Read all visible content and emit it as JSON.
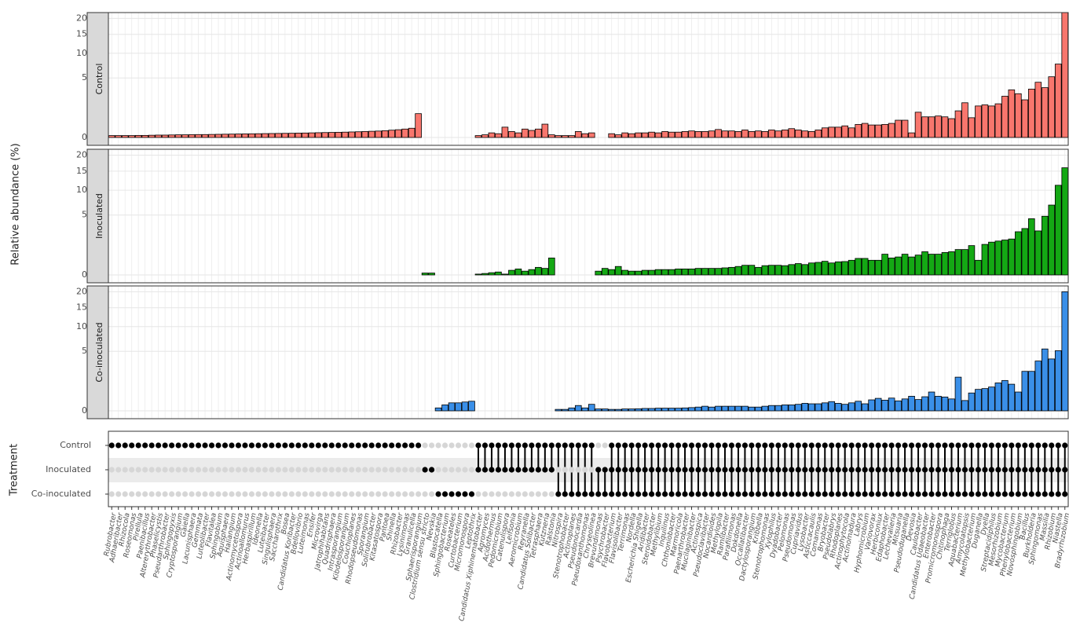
{
  "chart_data": {
    "type": "upset",
    "ylabel": "Relative abundance (%)",
    "matrix_ylabel": "Treatment",
    "scale": "sqrt",
    "ylim": [
      0,
      22
    ],
    "yticks": [
      0,
      5,
      10,
      15,
      20
    ],
    "grid": true,
    "categories": [
      "Rubrobacter",
      "Adhaeribacter",
      "Rhizocola",
      "Roseomonas",
      "Pirellula",
      "Paenibacillus",
      "Altererythrobacter",
      "Phaselicystis",
      "Pseudarthrobacter",
      "Sphingopyxis",
      "Cryptosporangium",
      "Gaiella",
      "Lacunisphaera",
      "Gemmata",
      "Luteolibacter",
      "Flavitalea",
      "Sphingobium",
      "Aquisphaera",
      "Haliangium",
      "Actinomycetospora",
      "Actinoallomurus",
      "Herbaspirillum",
      "Ideonella",
      "Luteibacter",
      "Singulisphaera",
      "Saccharothrix",
      "Bosea",
      "Candidatus Koribacter",
      "Bdellovibrio",
      "Luteimonas",
      "Ensifer",
      "Microvirga",
      "Jatrophihabitans",
      "Quadrisphaera",
      "Intrasporangium",
      "Kibdelosporangium",
      "Couchioplanes",
      "Rhodopseudomonas",
      "Sporangium",
      "Solirubrobacter",
      "Kitasatospora",
      "Pantoea",
      "Shinella",
      "Rhizobacter",
      "Lysinimonas",
      "Granulicella",
      "Sphaerisporangium",
      "Clostridium sensu stricto",
      "Nevskia",
      "Blastocatella",
      "Sphingobacterium",
      "Roseateles",
      "Curtobacterium",
      "Micromonospora",
      "Leptothrix",
      "Candidatus Xiphinematobacter",
      "Agromyces",
      "Acidothermus",
      "Pedomicrobium",
      "Catenulispora",
      "Leifsonia",
      "Aeromicrobium",
      "Reyranella",
      "Candidatus Solibacter",
      "Tetrasphaera",
      "Kutzneria",
      "Ralstonia",
      "Nitrospira",
      "Stenotrophobacter",
      "Actinoplanes",
      "Pseudonocardia",
      "Pseudoxanthomonas",
      "Chryseolinea",
      "Brevundimonas",
      "Psychrobacter",
      "Flavobacterium",
      "Flavisolibacter",
      "Terrimonas",
      "Nordella",
      "Escherichia Shigella",
      "Aridibacter",
      "Steroidobacter",
      "Methylibium",
      "Inquilinus",
      "Chthoniobacter",
      "Marmoricola",
      "Paenarthrobacter",
      "Mucilaginibacter",
      "Actinospica",
      "Pseudoclavibacter",
      "Nocardioides",
      "Methylopila",
      "Ramlibacter",
      "Parafilimonas",
      "Dokdonella",
      "Occallatibacter",
      "Dactylosporangium",
      "Kribbella",
      "Stenotrophomonas",
      "Xylophilus",
      "Dyadobacter",
      "Pelomonas",
      "Pseudomonas",
      "Cupriavidus",
      "Lysobacter",
      "Asticcacaulis",
      "Comamonas",
      "Bryobacter",
      "Pseudolabrys",
      "Rhodoplanes",
      "Actinophytocola",
      "Actinomadura",
      "Labrys",
      "Hyphomicrobium",
      "Variovorax",
      "Herbiconiux",
      "Edaphobacter",
      "Lechevalieria",
      "Mitsuaria",
      "Pseudoduganella",
      "Devosia",
      "Caulobacter",
      "Candidatus Udaeobacter",
      "Enterobacter",
      "Promicromonospora",
      "Chitinophaga",
      "Terriglobus",
      "Aquabacterium",
      "Amycolatopsis",
      "Methylobacterium",
      "Duganella",
      "Dyella",
      "Streptacidiphilus",
      "Mesorhizobium",
      "Mycobacterium",
      "Phenylobacterium",
      "Novosphingobium",
      "Bacillus",
      "Burkholderia",
      "Sphingomonas",
      "Massilia",
      "Rhizobium",
      "Niastella",
      "Bradyrhizobium"
    ],
    "series": [
      {
        "name": "Control",
        "color": "#f8766d",
        "values": [
          0.005,
          0.005,
          0.005,
          0.005,
          0.006,
          0.006,
          0.007,
          0.008,
          0.008,
          0.009,
          0.01,
          0.01,
          0.011,
          0.012,
          0.012,
          0.013,
          0.014,
          0.015,
          0.016,
          0.017,
          0.018,
          0.019,
          0.02,
          0.021,
          0.022,
          0.023,
          0.024,
          0.025,
          0.027,
          0.028,
          0.03,
          0.032,
          0.034,
          0.036,
          0.038,
          0.04,
          0.043,
          0.046,
          0.05,
          0.054,
          0.058,
          0.065,
          0.075,
          0.085,
          0.1,
          0.12,
          0.8,
          null,
          null,
          null,
          null,
          null,
          null,
          null,
          null,
          0.005,
          0.01,
          0.03,
          0.02,
          0.15,
          0.05,
          0.03,
          0.1,
          0.07,
          0.1,
          0.25,
          0.01,
          0.005,
          0.005,
          0.005,
          0.05,
          0.02,
          0.03,
          null,
          null,
          0.02,
          0.01,
          0.03,
          0.02,
          0.03,
          0.03,
          0.04,
          0.03,
          0.05,
          0.04,
          0.04,
          0.05,
          0.06,
          0.05,
          0.05,
          0.06,
          0.09,
          0.06,
          0.06,
          0.05,
          0.08,
          0.05,
          0.06,
          0.05,
          0.08,
          0.06,
          0.08,
          0.11,
          0.08,
          0.06,
          0.05,
          0.08,
          0.13,
          0.15,
          0.15,
          0.19,
          0.13,
          0.24,
          0.28,
          0.22,
          0.22,
          0.24,
          0.28,
          0.42,
          0.42,
          0.03,
          0.9,
          0.6,
          0.6,
          0.65,
          0.6,
          0.5,
          1.0,
          1.7,
          0.55,
          1.4,
          1.5,
          1.4,
          1.6,
          2.4,
          3.2,
          2.7,
          2.0,
          3.3,
          4.3,
          3.5,
          5.2,
          7.6,
          24
        ]
      },
      {
        "name": "Inoculated",
        "color": "#14a814",
        "values": [
          null,
          null,
          null,
          null,
          null,
          null,
          null,
          null,
          null,
          null,
          null,
          null,
          null,
          null,
          null,
          null,
          null,
          null,
          null,
          null,
          null,
          null,
          null,
          null,
          null,
          null,
          null,
          null,
          null,
          null,
          null,
          null,
          null,
          null,
          null,
          null,
          null,
          null,
          null,
          null,
          null,
          null,
          null,
          null,
          null,
          null,
          null,
          0.005,
          0.005,
          null,
          null,
          null,
          null,
          null,
          null,
          0.001,
          0.003,
          0.007,
          0.012,
          0.001,
          0.03,
          0.05,
          0.02,
          0.04,
          0.08,
          0.06,
          0.4,
          null,
          null,
          null,
          null,
          null,
          null,
          0.02,
          0.06,
          0.04,
          0.1,
          0.03,
          0.02,
          0.02,
          0.03,
          0.03,
          0.04,
          0.04,
          0.04,
          0.05,
          0.05,
          0.05,
          0.06,
          0.06,
          0.06,
          0.06,
          0.07,
          0.08,
          0.1,
          0.13,
          0.13,
          0.08,
          0.12,
          0.13,
          0.13,
          0.12,
          0.15,
          0.18,
          0.15,
          0.2,
          0.22,
          0.26,
          0.2,
          0.24,
          0.25,
          0.3,
          0.38,
          0.38,
          0.3,
          0.3,
          0.6,
          0.4,
          0.45,
          0.6,
          0.45,
          0.55,
          0.75,
          0.6,
          0.6,
          0.7,
          0.75,
          0.9,
          0.9,
          1.2,
          0.3,
          1.3,
          1.5,
          1.6,
          1.7,
          1.8,
          2.6,
          3.0,
          4.4,
          2.7,
          4.8,
          6.8,
          11.2,
          16
        ]
      },
      {
        "name": "Co-inoculated",
        "color": "#3a8fe8",
        "values": [
          null,
          null,
          null,
          null,
          null,
          null,
          null,
          null,
          null,
          null,
          null,
          null,
          null,
          null,
          null,
          null,
          null,
          null,
          null,
          null,
          null,
          null,
          null,
          null,
          null,
          null,
          null,
          null,
          null,
          null,
          null,
          null,
          null,
          null,
          null,
          null,
          null,
          null,
          null,
          null,
          null,
          null,
          null,
          null,
          null,
          null,
          null,
          null,
          null,
          0.012,
          0.05,
          0.09,
          0.09,
          0.11,
          0.13,
          null,
          null,
          null,
          null,
          null,
          null,
          null,
          null,
          null,
          null,
          null,
          null,
          0.003,
          0.003,
          0.012,
          0.04,
          0.012,
          0.06,
          0.005,
          0.005,
          0.003,
          0.003,
          0.005,
          0.005,
          0.006,
          0.008,
          0.008,
          0.01,
          0.01,
          0.01,
          0.01,
          0.012,
          0.015,
          0.02,
          0.03,
          0.02,
          0.03,
          0.03,
          0.03,
          0.03,
          0.03,
          0.02,
          0.02,
          0.03,
          0.04,
          0.04,
          0.05,
          0.05,
          0.06,
          0.08,
          0.07,
          0.07,
          0.09,
          0.12,
          0.08,
          0.06,
          0.09,
          0.13,
          0.07,
          0.17,
          0.22,
          0.16,
          0.23,
          0.14,
          0.2,
          0.3,
          0.18,
          0.28,
          0.5,
          0.3,
          0.27,
          0.2,
          1.6,
          0.15,
          0.45,
          0.65,
          0.7,
          0.8,
          1.1,
          1.3,
          1.0,
          0.5,
          2.2,
          2.2,
          3.5,
          5.4,
          3.8,
          5.1,
          20
        ]
      }
    ]
  }
}
